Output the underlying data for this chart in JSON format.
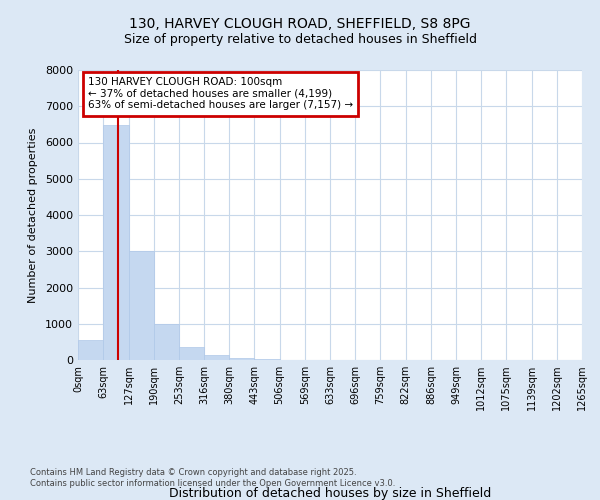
{
  "title_line1": "130, HARVEY CLOUGH ROAD, SHEFFIELD, S8 8PG",
  "title_line2": "Size of property relative to detached houses in Sheffield",
  "xlabel": "Distribution of detached houses by size in Sheffield",
  "ylabel": "Number of detached properties",
  "bar_edges": [
    0,
    63,
    127,
    190,
    253,
    316,
    380,
    443,
    506,
    569,
    633,
    696,
    759,
    822,
    886,
    949,
    1012,
    1075,
    1139,
    1202,
    1265
  ],
  "bar_heights": [
    550,
    6480,
    3000,
    1000,
    370,
    150,
    50,
    25,
    0,
    0,
    0,
    0,
    0,
    0,
    0,
    0,
    0,
    0,
    0,
    0
  ],
  "bar_color": "#c5d8f0",
  "bar_edge_color": "#b0c8e8",
  "grid_color": "#c8d8ea",
  "background_color": "#dce8f5",
  "plot_bg_color": "#ffffff",
  "annotation_text_line1": "130 HARVEY CLOUGH ROAD: 100sqm",
  "annotation_text_line2": "← 37% of detached houses are smaller (4,199)",
  "annotation_text_line3": "63% of semi-detached houses are larger (7,157) →",
  "vline_x": 100,
  "vline_color": "#cc0000",
  "annotation_box_color": "white",
  "annotation_box_edgecolor": "#cc0000",
  "ylim": [
    0,
    8000
  ],
  "yticks": [
    0,
    1000,
    2000,
    3000,
    4000,
    5000,
    6000,
    7000,
    8000
  ],
  "tick_labels": [
    "0sqm",
    "63sqm",
    "127sqm",
    "190sqm",
    "253sqm",
    "316sqm",
    "380sqm",
    "443sqm",
    "506sqm",
    "569sqm",
    "633sqm",
    "696sqm",
    "759sqm",
    "822sqm",
    "886sqm",
    "949sqm",
    "1012sqm",
    "1075sqm",
    "1139sqm",
    "1202sqm",
    "1265sqm"
  ],
  "footer_line1": "Contains HM Land Registry data © Crown copyright and database right 2025.",
  "footer_line2": "Contains public sector information licensed under the Open Government Licence v3.0."
}
